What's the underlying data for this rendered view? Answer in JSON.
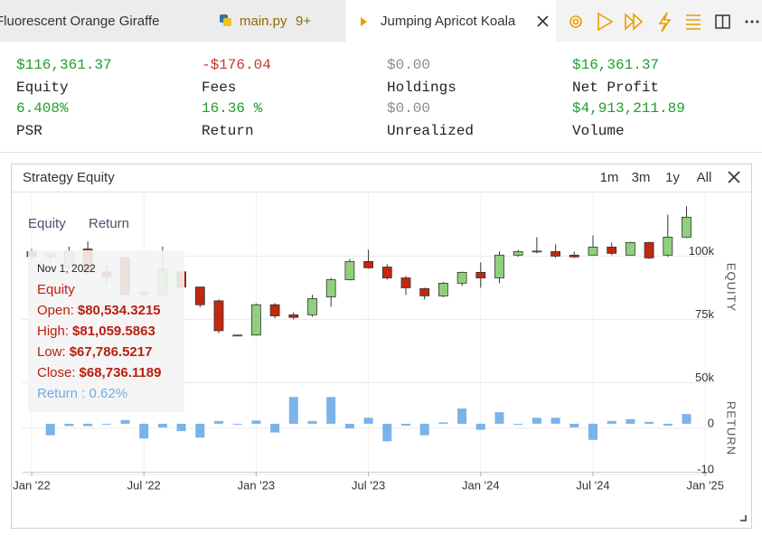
{
  "tabs": [
    {
      "label": "Fluorescent Orange Giraffe"
    },
    {
      "label": "main.py",
      "badge": "9+"
    },
    {
      "label": "Jumping Apricot Koala"
    }
  ],
  "stats": [
    {
      "value": "$116,361.37",
      "label": "Equity",
      "color": "#1f9e2c"
    },
    {
      "value": "-$176.04",
      "label": "Fees",
      "color": "#c0392b"
    },
    {
      "value": "$0.00",
      "label": "Holdings",
      "color": "#8a8a8a"
    },
    {
      "value": "$16,361.37",
      "label": "Net Profit",
      "color": "#1f9e2c"
    },
    {
      "value": "6.408%",
      "label": "PSR",
      "color": "#1f9e2c"
    },
    {
      "value": "16.36 %",
      "label": "Return",
      "color": "#1f9e2c"
    },
    {
      "value": "$0.00",
      "label": "Unrealized",
      "color": "#8a8a8a"
    },
    {
      "value": "$4,913,211.89",
      "label": "Volume",
      "color": "#1f9e2c"
    }
  ],
  "panel": {
    "title": "Strategy Equity",
    "ranges": [
      "1m",
      "3m",
      "1y",
      "All"
    ]
  },
  "chart_data": [
    {
      "type": "candlestick",
      "axis_title": "EQUITY",
      "x": [
        "2022-01",
        "2022-02",
        "2022-03",
        "2022-04",
        "2022-05",
        "2022-06",
        "2022-07",
        "2022-08",
        "2022-09",
        "2022-10",
        "2022-11",
        "2022-12",
        "2023-01",
        "2023-02",
        "2023-03",
        "2023-04",
        "2023-05",
        "2023-06",
        "2023-07",
        "2023-08",
        "2023-09",
        "2023-10",
        "2023-11",
        "2023-12",
        "2024-01",
        "2024-02",
        "2024-03",
        "2024-04",
        "2024-05",
        "2024-06",
        "2024-07",
        "2024-08",
        "2024-09",
        "2024-10",
        "2024-11",
        "2024-12"
      ],
      "series": [
        {
          "name": "Equity",
          "open": [
            100000,
            98000,
            94000,
            101000,
            92000,
            97500,
            83000,
            83000,
            92000,
            86000,
            80534.3215,
            67000,
            67000,
            79000,
            75000,
            75000,
            82100,
            88900,
            96100,
            93900,
            89600,
            85400,
            82500,
            87500,
            91800,
            89600,
            98600,
            100000,
            100000,
            98600,
            98600,
            101800,
            98600,
            103600,
            98600,
            105700
          ],
          "high": [
            101000,
            100000,
            102000,
            104000,
            94000,
            98000,
            85000,
            102000,
            93000,
            86000,
            81059.5863,
            67200,
            79500,
            79600,
            76000,
            82900,
            89600,
            97100,
            100700,
            95000,
            90400,
            85700,
            88000,
            92100,
            95700,
            100000,
            100700,
            105700,
            102900,
            100000,
            106400,
            103600,
            103900,
            103900,
            114600,
            117900
          ],
          "low": [
            97000,
            96000,
            93000,
            91000,
            87000,
            82000,
            82000,
            82000,
            85000,
            78000,
            67786.5217,
            66800,
            66800,
            73600,
            73200,
            74300,
            78200,
            88600,
            93200,
            88900,
            82900,
            81100,
            82000,
            86400,
            85700,
            87500,
            97900,
            99300,
            97500,
            97500,
            98600,
            98600,
            98600,
            97100,
            97900,
            105400
          ],
          "close": [
            98000,
            99000,
            100000,
            92000,
            90000,
            83000,
            84000,
            93000,
            86000,
            79000,
            68736.1189,
            67000,
            79000,
            74600,
            74000,
            81400,
            88900,
            96100,
            93600,
            89600,
            85700,
            82500,
            87500,
            91800,
            89600,
            98600,
            100000,
            100200,
            98200,
            97900,
            101800,
            99300,
            103600,
            97500,
            105700,
            113600
          ]
        }
      ],
      "up_color": "#90cf7e",
      "down_color": "#c0280f",
      "ylim": [
        48000,
        123000
      ],
      "yticks": [
        {
          "value": 50000,
          "label": "50k"
        },
        {
          "value": 75000,
          "label": "75k"
        },
        {
          "value": 100000,
          "label": "100k"
        }
      ],
      "xticks": [
        {
          "value": "2022-01",
          "label": "Jan '22"
        },
        {
          "value": "2022-07",
          "label": "Jul '22"
        },
        {
          "value": "2023-01",
          "label": "Jan '23"
        },
        {
          "value": "2023-07",
          "label": "Jul '23"
        },
        {
          "value": "2024-01",
          "label": "Jan '24"
        },
        {
          "value": "2024-07",
          "label": "Jul '24"
        },
        {
          "value": "2025-01",
          "label": "Jan '25"
        }
      ],
      "grid": true
    },
    {
      "type": "bar",
      "axis_title": "RETURN",
      "x": [
        "2022-01",
        "2022-02",
        "2022-03",
        "2022-04",
        "2022-05",
        "2022-06",
        "2022-07",
        "2022-08",
        "2022-09",
        "2022-10",
        "2022-11",
        "2022-12",
        "2023-01",
        "2023-02",
        "2023-03",
        "2023-04",
        "2023-05",
        "2023-06",
        "2023-07",
        "2023-08",
        "2023-09",
        "2023-10",
        "2023-11",
        "2023-12",
        "2024-01",
        "2024-02",
        "2024-03",
        "2024-04",
        "2024-05",
        "2024-06",
        "2024-07",
        "2024-08",
        "2024-09",
        "2024-10",
        "2024-11",
        "2024-12"
      ],
      "series": [
        {
          "name": "Return",
          "color": "#7ab3ea",
          "values": [
            null,
            -2.5,
            -0.5,
            -0.5,
            0,
            0.8,
            -3.2,
            -0.8,
            -1.6,
            -3.0,
            0.6,
            0,
            0.7,
            -1.9,
            5.8,
            0.6,
            5.8,
            -1.0,
            1.3,
            -3.8,
            -0.4,
            -2.5,
            0.3,
            3.3,
            -1.3,
            2.5,
            -0.2,
            1.3,
            1.3,
            -0.8,
            -3.5,
            0.6,
            1.0,
            0.4,
            -0.4,
            2.1
          ]
        }
      ],
      "ylim": [
        -10.4,
        8.6
      ],
      "yticks": [
        -10,
        0
      ],
      "grid": true
    }
  ],
  "tooltip": {
    "date": "Nov 1, 2022",
    "series": "Equity",
    "rows": [
      [
        "Open:",
        "$80,534.3215"
      ],
      [
        "High:",
        "$81,059.5863"
      ],
      [
        "Low:",
        "$67,786.5217"
      ],
      [
        "Close:",
        "$68,736.1189"
      ]
    ],
    "return": "Return : 0.62%"
  }
}
